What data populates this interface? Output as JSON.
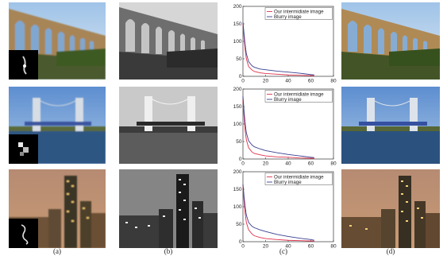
{
  "columns": [
    {
      "label": "(a)"
    },
    {
      "label": "(b)"
    },
    {
      "label": "(c)"
    },
    {
      "label": "(d)"
    }
  ],
  "rows": [
    {
      "scene": "aqueduct"
    },
    {
      "scene": "lift-bridge"
    },
    {
      "scene": "night-city"
    }
  ],
  "colors": {
    "intermediate": "#e0304a",
    "blurry": "#3a3f8f"
  },
  "chart_data": [
    {
      "type": "line",
      "xlim": [
        0,
        80
      ],
      "ylim": [
        0,
        200
      ],
      "xticks": [
        "0",
        "20",
        "40",
        "60",
        "80"
      ],
      "yticks": [
        "0",
        "50",
        "100",
        "150",
        "200"
      ],
      "legend_position": "top-right",
      "series": [
        {
          "name": "Our intermidiate image",
          "color": "#e0304a",
          "x": [
            0,
            1,
            2,
            3,
            5,
            8,
            10,
            15,
            20,
            30,
            40,
            50,
            60,
            63
          ],
          "y": [
            150,
            110,
            75,
            50,
            28,
            18,
            14,
            10,
            8,
            6,
            4,
            3,
            2,
            2
          ]
        },
        {
          "name": "Blurry image",
          "color": "#3a3f8f",
          "x": [
            0,
            1,
            2,
            3,
            5,
            8,
            10,
            15,
            20,
            30,
            40,
            50,
            60,
            63
          ],
          "y": [
            155,
            120,
            88,
            65,
            42,
            30,
            26,
            21,
            19,
            15,
            12,
            9,
            5,
            4
          ]
        }
      ]
    },
    {
      "type": "line",
      "xlim": [
        0,
        80
      ],
      "ylim": [
        0,
        200
      ],
      "xticks": [
        "0",
        "20",
        "40",
        "60",
        "80"
      ],
      "yticks": [
        "0",
        "50",
        "100",
        "150",
        "200"
      ],
      "legend_position": "top-right",
      "series": [
        {
          "name": "Our intermidiate image",
          "color": "#e0304a",
          "x": [
            0,
            1,
            2,
            3,
            5,
            8,
            10,
            15,
            20,
            30,
            40,
            50,
            60,
            63
          ],
          "y": [
            170,
            120,
            80,
            55,
            32,
            20,
            16,
            12,
            9,
            6,
            5,
            3,
            2,
            2
          ]
        },
        {
          "name": "Blurry image",
          "color": "#3a3f8f",
          "x": [
            0,
            1,
            2,
            3,
            5,
            8,
            10,
            15,
            20,
            30,
            40,
            50,
            60,
            63
          ],
          "y": [
            180,
            135,
            100,
            75,
            52,
            40,
            35,
            29,
            24,
            18,
            13,
            9,
            5,
            4
          ]
        }
      ]
    },
    {
      "type": "line",
      "xlim": [
        0,
        80
      ],
      "ylim": [
        0,
        200
      ],
      "xticks": [
        "0",
        "20",
        "40",
        "60",
        "80"
      ],
      "yticks": [
        "0",
        "50",
        "100",
        "150",
        "200"
      ],
      "legend_position": "top-right",
      "series": [
        {
          "name": "Our intermidiate image",
          "color": "#e0304a",
          "x": [
            0,
            1,
            2,
            3,
            5,
            8,
            10,
            15,
            20,
            30,
            40,
            50,
            60,
            63
          ],
          "y": [
            160,
            115,
            80,
            55,
            34,
            22,
            17,
            12,
            9,
            6,
            4,
            3,
            2,
            2
          ]
        },
        {
          "name": "Blurry image",
          "color": "#3a3f8f",
          "x": [
            0,
            1,
            2,
            3,
            5,
            8,
            10,
            15,
            20,
            30,
            40,
            50,
            60,
            63
          ],
          "y": [
            165,
            128,
            98,
            76,
            55,
            44,
            40,
            34,
            29,
            21,
            15,
            10,
            6,
            4
          ]
        }
      ]
    }
  ]
}
